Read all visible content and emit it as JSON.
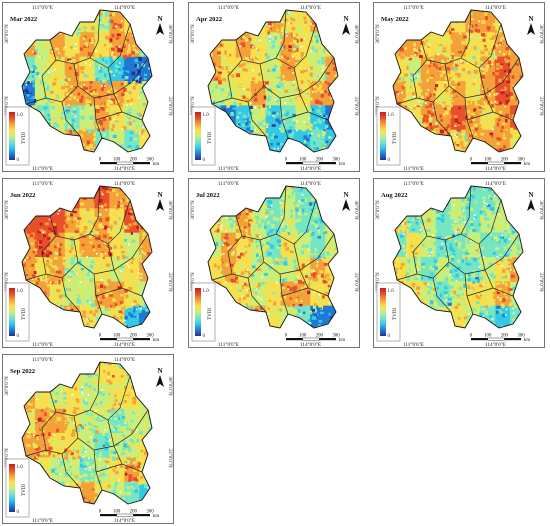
{
  "figure": {
    "coords": {
      "lon_left": "111°0'0\"E",
      "lon_right": "114°0'0\"E",
      "lat_top": "36°0'0\"N",
      "lat_bottom": "33°0'0\"N"
    },
    "legend": {
      "label": "TVDI",
      "max": "1.0",
      "min": "0",
      "colors": [
        "#2a2f8f",
        "#1f78d4",
        "#33c9e6",
        "#74e6c4",
        "#c9ef7b",
        "#f7e04b",
        "#f4a13a",
        "#e8502c",
        "#c51d22"
      ]
    },
    "scale": {
      "ticks": [
        "0",
        "100",
        "200",
        "300"
      ],
      "unit": "km"
    },
    "north": "N",
    "panels": [
      {
        "title": "Mar 2022",
        "pattern": [
          5,
          6,
          6,
          4,
          5,
          4,
          6,
          5,
          3,
          6,
          4,
          6,
          5,
          6,
          5,
          6,
          6,
          3,
          3,
          4,
          5,
          6,
          5,
          3,
          2,
          1,
          1,
          1,
          4,
          5,
          6,
          6,
          6,
          6,
          5,
          4,
          4,
          3,
          4,
          3,
          4,
          6,
          5,
          4,
          4,
          6,
          5,
          5,
          6,
          6,
          3,
          4,
          3,
          5
        ]
      },
      {
        "title": "Apr 2022",
        "pattern": [
          6,
          6,
          5,
          5,
          6,
          5,
          5,
          6,
          5,
          6,
          5,
          6,
          5,
          4,
          6,
          5,
          4,
          5,
          6,
          5,
          5,
          5,
          4,
          6,
          5,
          4,
          6,
          4,
          4,
          5,
          6,
          4,
          4,
          5,
          6,
          6,
          2,
          1,
          2,
          4,
          2,
          3,
          4,
          2,
          1,
          2,
          1,
          2,
          4,
          2,
          2,
          2,
          3,
          2
        ]
      },
      {
        "title": "May 2022",
        "pattern": [
          6,
          5,
          6,
          6,
          5,
          6,
          6,
          5,
          4,
          6,
          6,
          5,
          5,
          6,
          5,
          5,
          6,
          6,
          5,
          4,
          6,
          6,
          5,
          5,
          6,
          7,
          6,
          6,
          5,
          6,
          5,
          6,
          5,
          6,
          7,
          6,
          6,
          5,
          6,
          6,
          7,
          6,
          5,
          6,
          7,
          6,
          6,
          5,
          6,
          5,
          6,
          6,
          6,
          5
        ]
      },
      {
        "title": "Jun 2022",
        "pattern": [
          5,
          6,
          6,
          7,
          6,
          7,
          6,
          6,
          4,
          7,
          7,
          7,
          6,
          5,
          6,
          5,
          7,
          6,
          6,
          7,
          6,
          5,
          6,
          6,
          5,
          4,
          6,
          6,
          5,
          6,
          4,
          4,
          5,
          4,
          5,
          6,
          5,
          6,
          5,
          4,
          4,
          6,
          6,
          5,
          4,
          5,
          3,
          2,
          6,
          5,
          4,
          5,
          2,
          1
        ]
      },
      {
        "title": "Jul 2022",
        "pattern": [
          3,
          4,
          3,
          4,
          3,
          4,
          3,
          3,
          3,
          5,
          4,
          6,
          4,
          3,
          4,
          3,
          3,
          4,
          4,
          6,
          5,
          4,
          3,
          5,
          4,
          3,
          4,
          5,
          6,
          5,
          4,
          4,
          4,
          5,
          6,
          5,
          6,
          5,
          5,
          4,
          5,
          6,
          6,
          5,
          5,
          4,
          4,
          3,
          6,
          5,
          4,
          3,
          1,
          1
        ]
      },
      {
        "title": "Aug 2022",
        "pattern": [
          3,
          4,
          3,
          3,
          4,
          3,
          3,
          4,
          3,
          5,
          3,
          4,
          3,
          4,
          3,
          4,
          4,
          3,
          3,
          5,
          4,
          3,
          3,
          4,
          3,
          3,
          4,
          5,
          4,
          3,
          4,
          3,
          3,
          4,
          5,
          6,
          5,
          5,
          4,
          3,
          4,
          5,
          5,
          6,
          4,
          3,
          3,
          3,
          4,
          5,
          4,
          3,
          2,
          3
        ]
      },
      {
        "title": "Sep 2022",
        "pattern": [
          5,
          4,
          5,
          5,
          4,
          5,
          5,
          4,
          4,
          6,
          5,
          4,
          5,
          4,
          4,
          5,
          5,
          4,
          5,
          6,
          6,
          5,
          4,
          4,
          3,
          4,
          4,
          6,
          6,
          5,
          5,
          4,
          3,
          4,
          4,
          5,
          6,
          5,
          4,
          4,
          3,
          4,
          5,
          6,
          5,
          4,
          4,
          3,
          5,
          6,
          5,
          4,
          3,
          2
        ]
      }
    ]
  }
}
